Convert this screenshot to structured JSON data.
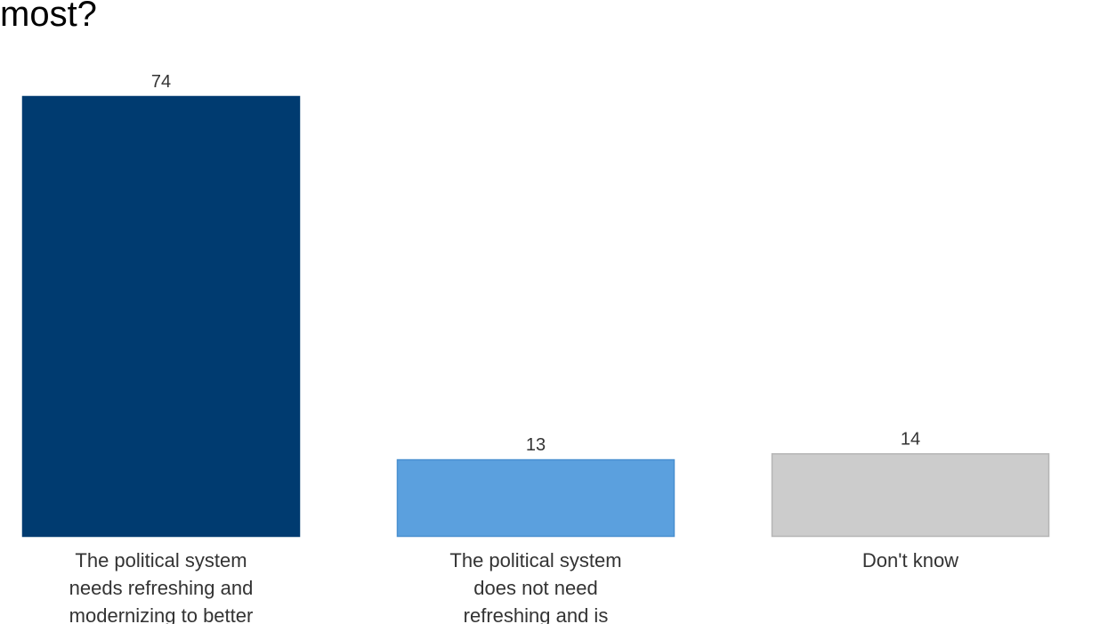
{
  "chart_data": {
    "type": "bar",
    "title": "most?",
    "categories": [
      [
        "The political system",
        "needs refreshing and",
        "modernizing to better"
      ],
      [
        "The political system",
        "does not need",
        "refreshing and is"
      ],
      [
        "Don't know"
      ]
    ],
    "values": [
      74,
      13,
      14
    ],
    "colors": [
      "#003b70",
      "#5ba0de",
      "#cccccc"
    ],
    "borders": [
      "#003b70",
      "#4a90d0",
      "#b5b5b5"
    ],
    "ylim": [
      0,
      74
    ],
    "xlabel": "",
    "ylabel": "",
    "grid": false
  }
}
